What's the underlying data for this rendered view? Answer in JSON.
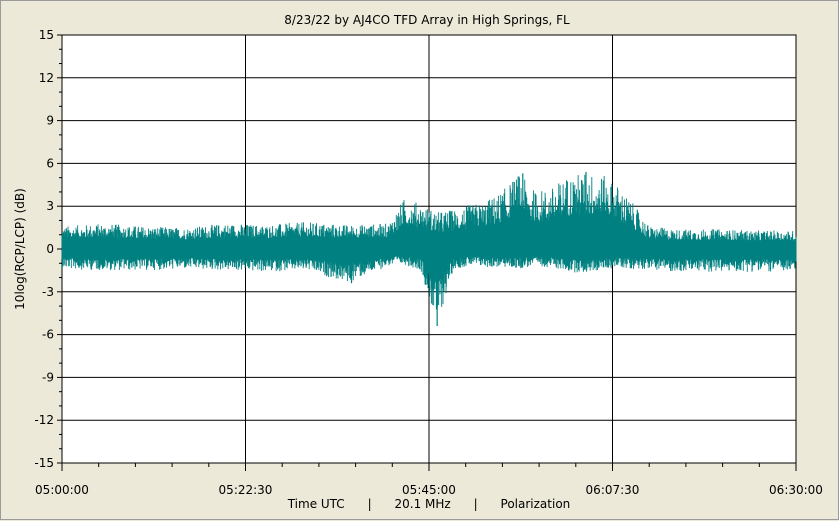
{
  "chart_data": {
    "type": "line",
    "title": "8/23/22  by  AJ4CO TFD Array  in  High Springs, FL",
    "xlabel": "Time UTC      |      20.1 MHz      |      Polarization",
    "ylabel": "10log(RCP/LCP) (dB)",
    "xlim": [
      "05:00:00",
      "06:30:00"
    ],
    "ylim": [
      -15,
      15
    ],
    "x_ticks": [
      "05:00:00",
      "05:22:30",
      "05:45:00",
      "06:07:30",
      "06:30:00"
    ],
    "y_ticks": [
      "15",
      "12",
      "9",
      "6",
      "3",
      "0",
      "-3",
      "-6",
      "-9",
      "-12",
      "-15"
    ],
    "y_tick_values": [
      15,
      12,
      9,
      6,
      3,
      0,
      -3,
      -6,
      -9,
      -12,
      -15
    ],
    "grid": true,
    "series_color": "#008080",
    "series": [
      {
        "x": [
          "05:00:00",
          "05:05:00",
          "05:10:00",
          "05:15:00",
          "05:20:00",
          "05:25:00",
          "05:30:00",
          "05:35:00",
          "05:40:00",
          "05:42:00",
          "05:44:00",
          "05:46:00",
          "05:48:00",
          "05:50:00",
          "05:52:00",
          "05:54:00",
          "05:56:00",
          "05:58:00",
          "06:00:00",
          "06:02:00",
          "06:04:00",
          "06:06:00",
          "06:08:00",
          "06:10:00",
          "06:12:00",
          "06:15:00",
          "06:20:00",
          "06:25:00",
          "06:30:00"
        ],
        "y_max": [
          1.6,
          1.8,
          1.6,
          1.5,
          1.8,
          1.7,
          1.9,
          1.7,
          1.8,
          3.6,
          3.2,
          2.6,
          2.8,
          3.1,
          3.4,
          4.1,
          5.3,
          4.1,
          4.3,
          5.2,
          5.4,
          5.3,
          4.6,
          3.2,
          1.6,
          1.4,
          1.4,
          1.3,
          1.3
        ],
        "y_min": [
          -1.4,
          -1.5,
          -1.5,
          -1.4,
          -1.5,
          -1.6,
          -1.5,
          -2.4,
          -1.2,
          -1.1,
          -1.5,
          -5.4,
          -1.4,
          -1.2,
          -1.3,
          -1.3,
          -1.4,
          -1.2,
          -1.3,
          -1.6,
          -1.7,
          -1.5,
          -1.3,
          -1.4,
          -1.4,
          -1.6,
          -1.6,
          -1.6,
          -1.6
        ]
      }
    ]
  }
}
